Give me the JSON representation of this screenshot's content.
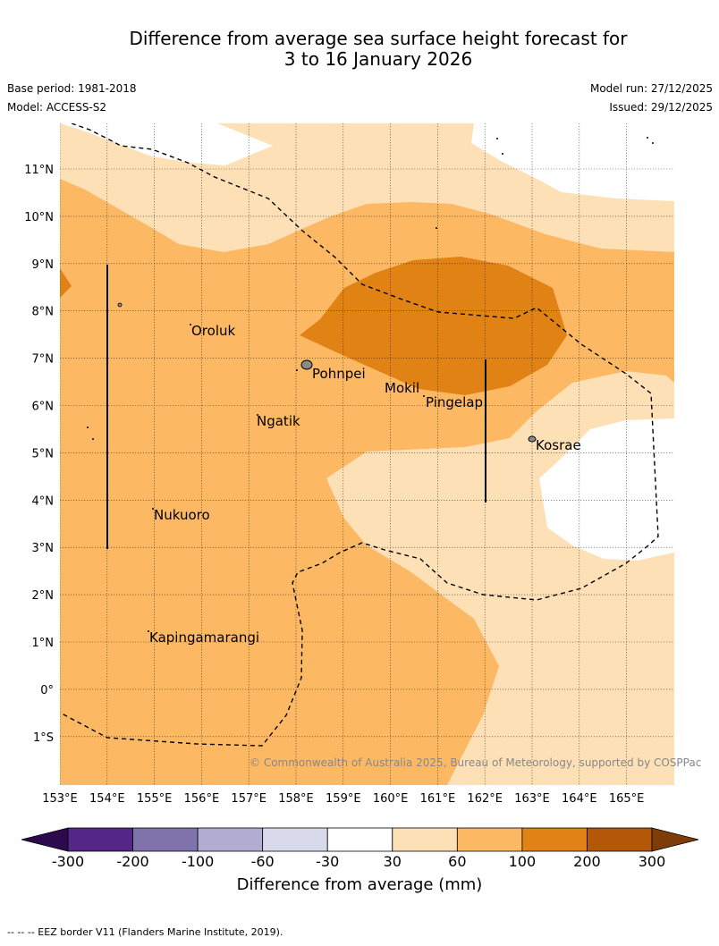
{
  "title_line1": "Difference from average sea surface height forecast for",
  "title_line2": "3 to 16 January 2026",
  "base_period": "Base period: 1981-2018",
  "model": "Model: ACCESS-S2",
  "model_run": "Model run: 27/12/2025",
  "issued": "Issued: 29/12/2025",
  "copyright": "© Commonwealth of Australia 2025, Bureau of Meteorology, supported by COSPPac",
  "lat_labels": [
    "11°N",
    "10°N",
    "9°N",
    "8°N",
    "7°N",
    "6°N",
    "5°N",
    "4°N",
    "3°N",
    "2°N",
    "1°N",
    "0°",
    "1°S"
  ],
  "lon_labels": [
    "153°E",
    "154°E",
    "155°E",
    "156°E",
    "157°E",
    "158°E",
    "159°E",
    "160°E",
    "161°E",
    "162°E",
    "163°E",
    "164°E",
    "165°E"
  ],
  "places": {
    "oroluk": "Oroluk",
    "pohnpei": "Pohnpei",
    "mokil": "Mokil",
    "pingelap": "Pingelap",
    "ngatik": "Ngatik",
    "kosrae": "Kosrae",
    "nukuoro": "Nukuoro",
    "kapingamarangi": "Kapingamarangi"
  },
  "colorbar": {
    "title": "Difference from average (mm)",
    "ticks": [
      "-300",
      "-200",
      "-100",
      "-60",
      "-30",
      "30",
      "60",
      "100",
      "200",
      "300"
    ],
    "colors": {
      "below": "#2d0a4e",
      "b1": "#542688",
      "b2": "#8073ac",
      "b3": "#b2abd2",
      "b4": "#d8daeb",
      "b5": "#ffffff",
      "b6": "#fee0b6",
      "b7": "#fdb863",
      "b8": "#e08214",
      "b9": "#b35806",
      "above": "#7f3b08"
    }
  },
  "footnote": "--  --  -- EEZ border V11 (Flanders Marine Institute, 2019)."
}
